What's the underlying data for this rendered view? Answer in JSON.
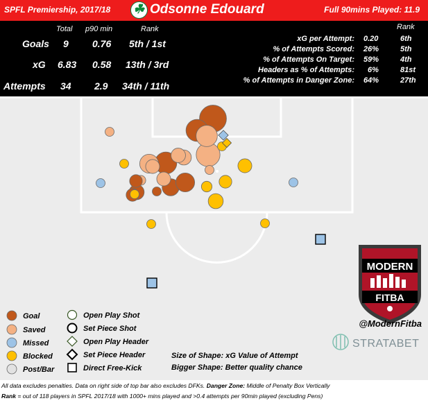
{
  "header": {
    "league": "SPFL Premiership, 2017/18",
    "player": "Odsonne Edouard",
    "minutes": "Full 90mins Played:  11.9"
  },
  "stats_left": {
    "col_total": "Total",
    "col_p90": "p90 min",
    "col_rank": "Rank",
    "rows": [
      {
        "label": "Goals",
        "total": "9",
        "p90": "0.76",
        "rank": "5th / 1st"
      },
      {
        "label": "xG",
        "total": "6.83",
        "p90": "0.58",
        "rank": "13th / 3rd"
      },
      {
        "label": "Attempts",
        "total": "34",
        "p90": "2.9",
        "rank": "34th / 11th"
      }
    ]
  },
  "stats_right": {
    "col_rank": "Rank",
    "rows": [
      {
        "label": "xG per Attempt:",
        "value": "0.20",
        "rank": "6th"
      },
      {
        "label": "% of Attempts Scored:",
        "value": "26%",
        "rank": "5th"
      },
      {
        "label": "% of Attempts On Target:",
        "value": "59%",
        "rank": "4th"
      },
      {
        "label": "Headers as % of Attempts:",
        "value": "6%",
        "rank": "81st"
      },
      {
        "label": "% of Attempts in Danger Zone:",
        "value": "64%",
        "rank": "27th"
      }
    ]
  },
  "legend": {
    "outcomes": [
      "Goal",
      "Saved",
      "Missed",
      "Blocked",
      "Post/Bar"
    ],
    "types": [
      "Open Play Shot",
      "Set Piece Shot",
      "Open Play Header",
      "Set Piece Header",
      "Direct Free-Kick"
    ],
    "size_note": "Size of Shape: xG Value of Attempt",
    "bigger_note": "Bigger Shape: Better quality chance"
  },
  "branding": {
    "logo_top": "MODERN",
    "logo_bottom": "FITBA",
    "handle": "@ModernFitba",
    "partner": "STRATABET"
  },
  "footnotes": {
    "line1_a": "All data excludes penalties. Data on right side of top bar also excludes DFKs. ",
    "line1_b": "Danger Zone:",
    "line1_c": " Middle of Penalty Box Vertically",
    "line2_a": "Rank",
    "line2_b": " = out of 118 players in SPFL 2017/18 with 1000+ mins played and  >0.4 attempts per 90min played (excluding Pens)"
  },
  "colors": {
    "goal": "#c0581b",
    "saved": "#f4b183",
    "missed": "#9dc3e6",
    "blocked": "#ffc000",
    "header_red": "#ee1c1c",
    "pitch": "#ececec"
  },
  "chart_data": {
    "type": "scatter",
    "title": "Odsonne Edouard",
    "note": "Each marker is one attempt plotted at its shooting location; marker size encodes xG value; colour encodes outcome; shape encodes attempt type.",
    "shots": [
      {
        "outcome": "Goal",
        "type": "Open Play Shot",
        "xg": 0.45
      },
      {
        "outcome": "Goal",
        "type": "Open Play Shot",
        "xg": 0.3
      },
      {
        "outcome": "Goal",
        "type": "Open Play Shot",
        "xg": 0.3
      },
      {
        "outcome": "Goal",
        "type": "Open Play Shot",
        "xg": 0.22
      },
      {
        "outcome": "Goal",
        "type": "Open Play Shot",
        "xg": 0.18
      },
      {
        "outcome": "Goal",
        "type": "Open Play Shot",
        "xg": 0.14
      },
      {
        "outcome": "Goal",
        "type": "Open Play Shot",
        "xg": 0.1
      },
      {
        "outcome": "Goal",
        "type": "Open Play Shot",
        "xg": 0.1
      },
      {
        "outcome": "Goal",
        "type": "Open Play Shot",
        "xg": 0.03
      },
      {
        "outcome": "Saved",
        "type": "Open Play Shot",
        "xg": 0.35
      },
      {
        "outcome": "Saved",
        "type": "Open Play Shot",
        "xg": 0.28
      },
      {
        "outcome": "Saved",
        "type": "Open Play Shot",
        "xg": 0.22
      },
      {
        "outcome": "Saved",
        "type": "Open Play Shot",
        "xg": 0.14
      },
      {
        "outcome": "Saved",
        "type": "Open Play Shot",
        "xg": 0.13
      },
      {
        "outcome": "Saved",
        "type": "Open Play Shot",
        "xg": 0.12
      },
      {
        "outcome": "Saved",
        "type": "Open Play Shot",
        "xg": 0.12
      },
      {
        "outcome": "Saved",
        "type": "Open Play Shot",
        "xg": 0.06
      },
      {
        "outcome": "Saved",
        "type": "Open Play Shot",
        "xg": 0.04
      },
      {
        "outcome": "Saved",
        "type": "Open Play Shot",
        "xg": 0.03
      },
      {
        "outcome": "Missed",
        "type": "Open Play Shot",
        "xg": 0.03
      },
      {
        "outcome": "Missed",
        "type": "Open Play Shot",
        "xg": 0.03
      },
      {
        "outcome": "Missed",
        "type": "Open Play Header",
        "xg": 0.06
      },
      {
        "outcome": "Missed",
        "type": "Direct Free-Kick",
        "xg": 0.03
      },
      {
        "outcome": "Missed",
        "type": "Direct Free-Kick",
        "xg": 0.03
      },
      {
        "outcome": "Blocked",
        "type": "Open Play Shot",
        "xg": 0.14
      },
      {
        "outcome": "Blocked",
        "type": "Open Play Shot",
        "xg": 0.12
      },
      {
        "outcome": "Blocked",
        "type": "Open Play Shot",
        "xg": 0.1
      },
      {
        "outcome": "Blocked",
        "type": "Open Play Shot",
        "xg": 0.07
      },
      {
        "outcome": "Blocked",
        "type": "Open Play Shot",
        "xg": 0.05
      },
      {
        "outcome": "Blocked",
        "type": "Open Play Shot",
        "xg": 0.04
      },
      {
        "outcome": "Blocked",
        "type": "Open Play Shot",
        "xg": 0.03
      },
      {
        "outcome": "Blocked",
        "type": "Open Play Shot",
        "xg": 0.03
      },
      {
        "outcome": "Blocked",
        "type": "Open Play Header",
        "xg": 0.05
      },
      {
        "outcome": "Blocked",
        "type": "Open Play Shot",
        "xg": 0.02
      }
    ]
  }
}
